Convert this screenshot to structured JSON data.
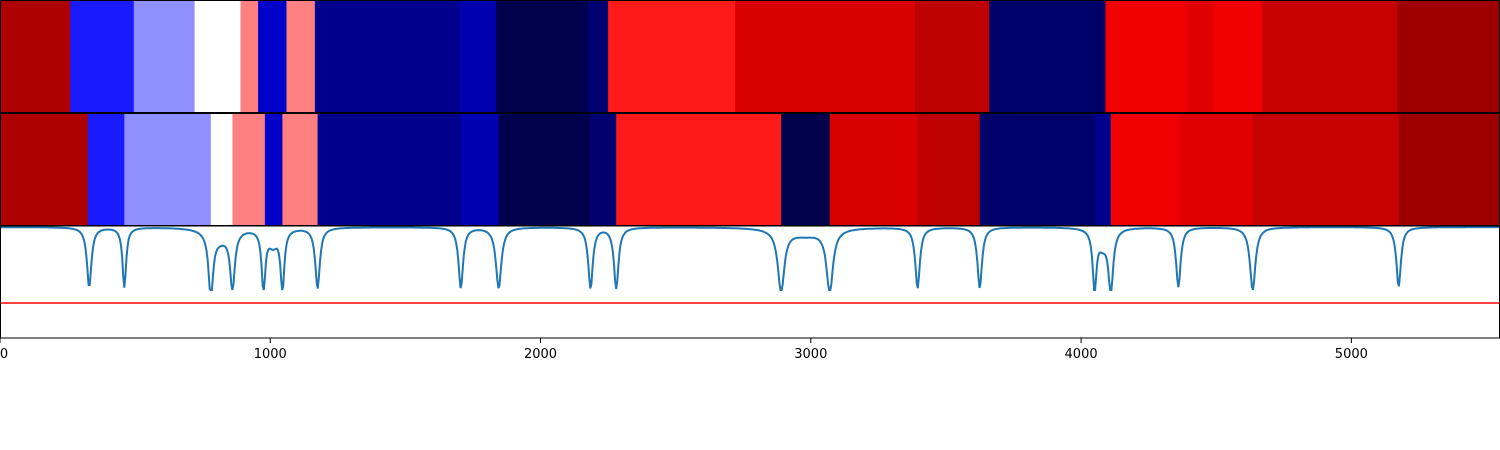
{
  "chart_data": {
    "type": "heatmap",
    "xlim": [
      0,
      5550
    ],
    "xticks": [
      0,
      1000,
      2000,
      3000,
      4000,
      5000
    ],
    "xtick_labels": [
      "0",
      "1000",
      "2000",
      "3000",
      "4000",
      "5000"
    ],
    "colormap": "seismic",
    "color_range": [
      -1,
      1
    ],
    "rows": [
      {
        "boundaries": [
          0,
          260,
          495,
          720,
          890,
          955,
          1060,
          1165,
          1700,
          1835,
          2175,
          2250,
          2720,
          3385,
          3660,
          4090,
          4390,
          4490,
          4670,
          5170,
          5550
        ],
        "values": [
          0.82,
          -0.45,
          -0.22,
          0.0,
          0.25,
          -0.65,
          0.25,
          -0.82,
          -0.72,
          -1.0,
          -0.9,
          0.45,
          0.65,
          0.75,
          -0.92,
          0.56,
          0.62,
          0.56,
          0.72,
          0.88
        ]
      },
      {
        "boundaries": [
          0,
          325,
          460,
          780,
          860,
          980,
          1045,
          1175,
          1705,
          1845,
          2185,
          2280,
          2890,
          3070,
          3395,
          3625,
          4050,
          4110,
          4360,
          4635,
          5175,
          5550
        ],
        "values": [
          0.82,
          -0.45,
          -0.22,
          0.0,
          0.25,
          -0.65,
          0.25,
          -0.82,
          -0.72,
          -1.0,
          -0.9,
          0.45,
          -1.0,
          0.65,
          0.75,
          -0.92,
          -0.82,
          0.56,
          0.62,
          0.72,
          0.88
        ]
      }
    ],
    "trace": {
      "baseline": 1.0,
      "dips": [
        {
          "x": 330,
          "depth": 0.95,
          "width": 10
        },
        {
          "x": 460,
          "depth": 0.95,
          "width": 8
        },
        {
          "x": 780,
          "depth": 1.0,
          "width": 10
        },
        {
          "x": 815,
          "depth": 0.18,
          "width": 45
        },
        {
          "x": 860,
          "depth": 0.92,
          "width": 10
        },
        {
          "x": 975,
          "depth": 0.95,
          "width": 8
        },
        {
          "x": 1010,
          "depth": 0.25,
          "width": 22
        },
        {
          "x": 1045,
          "depth": 0.97,
          "width": 8
        },
        {
          "x": 1175,
          "depth": 0.97,
          "width": 10
        },
        {
          "x": 1705,
          "depth": 0.97,
          "width": 10
        },
        {
          "x": 1845,
          "depth": 0.97,
          "width": 12
        },
        {
          "x": 2185,
          "depth": 0.97,
          "width": 10
        },
        {
          "x": 2280,
          "depth": 0.97,
          "width": 10
        },
        {
          "x": 2890,
          "depth": 1.0,
          "width": 14
        },
        {
          "x": 2980,
          "depth": 0.12,
          "width": 80
        },
        {
          "x": 3070,
          "depth": 1.0,
          "width": 14
        },
        {
          "x": 3395,
          "depth": 0.97,
          "width": 10
        },
        {
          "x": 3625,
          "depth": 0.97,
          "width": 10
        },
        {
          "x": 4050,
          "depth": 0.97,
          "width": 8
        },
        {
          "x": 4080,
          "depth": 0.25,
          "width": 22
        },
        {
          "x": 4110,
          "depth": 1.0,
          "width": 10
        },
        {
          "x": 4360,
          "depth": 0.95,
          "width": 10
        },
        {
          "x": 4635,
          "depth": 1.0,
          "width": 12
        },
        {
          "x": 5175,
          "depth": 0.95,
          "width": 10
        }
      ]
    },
    "threshold_line": {
      "color": "#ff0000"
    },
    "trace_color": "#1f77b4"
  }
}
